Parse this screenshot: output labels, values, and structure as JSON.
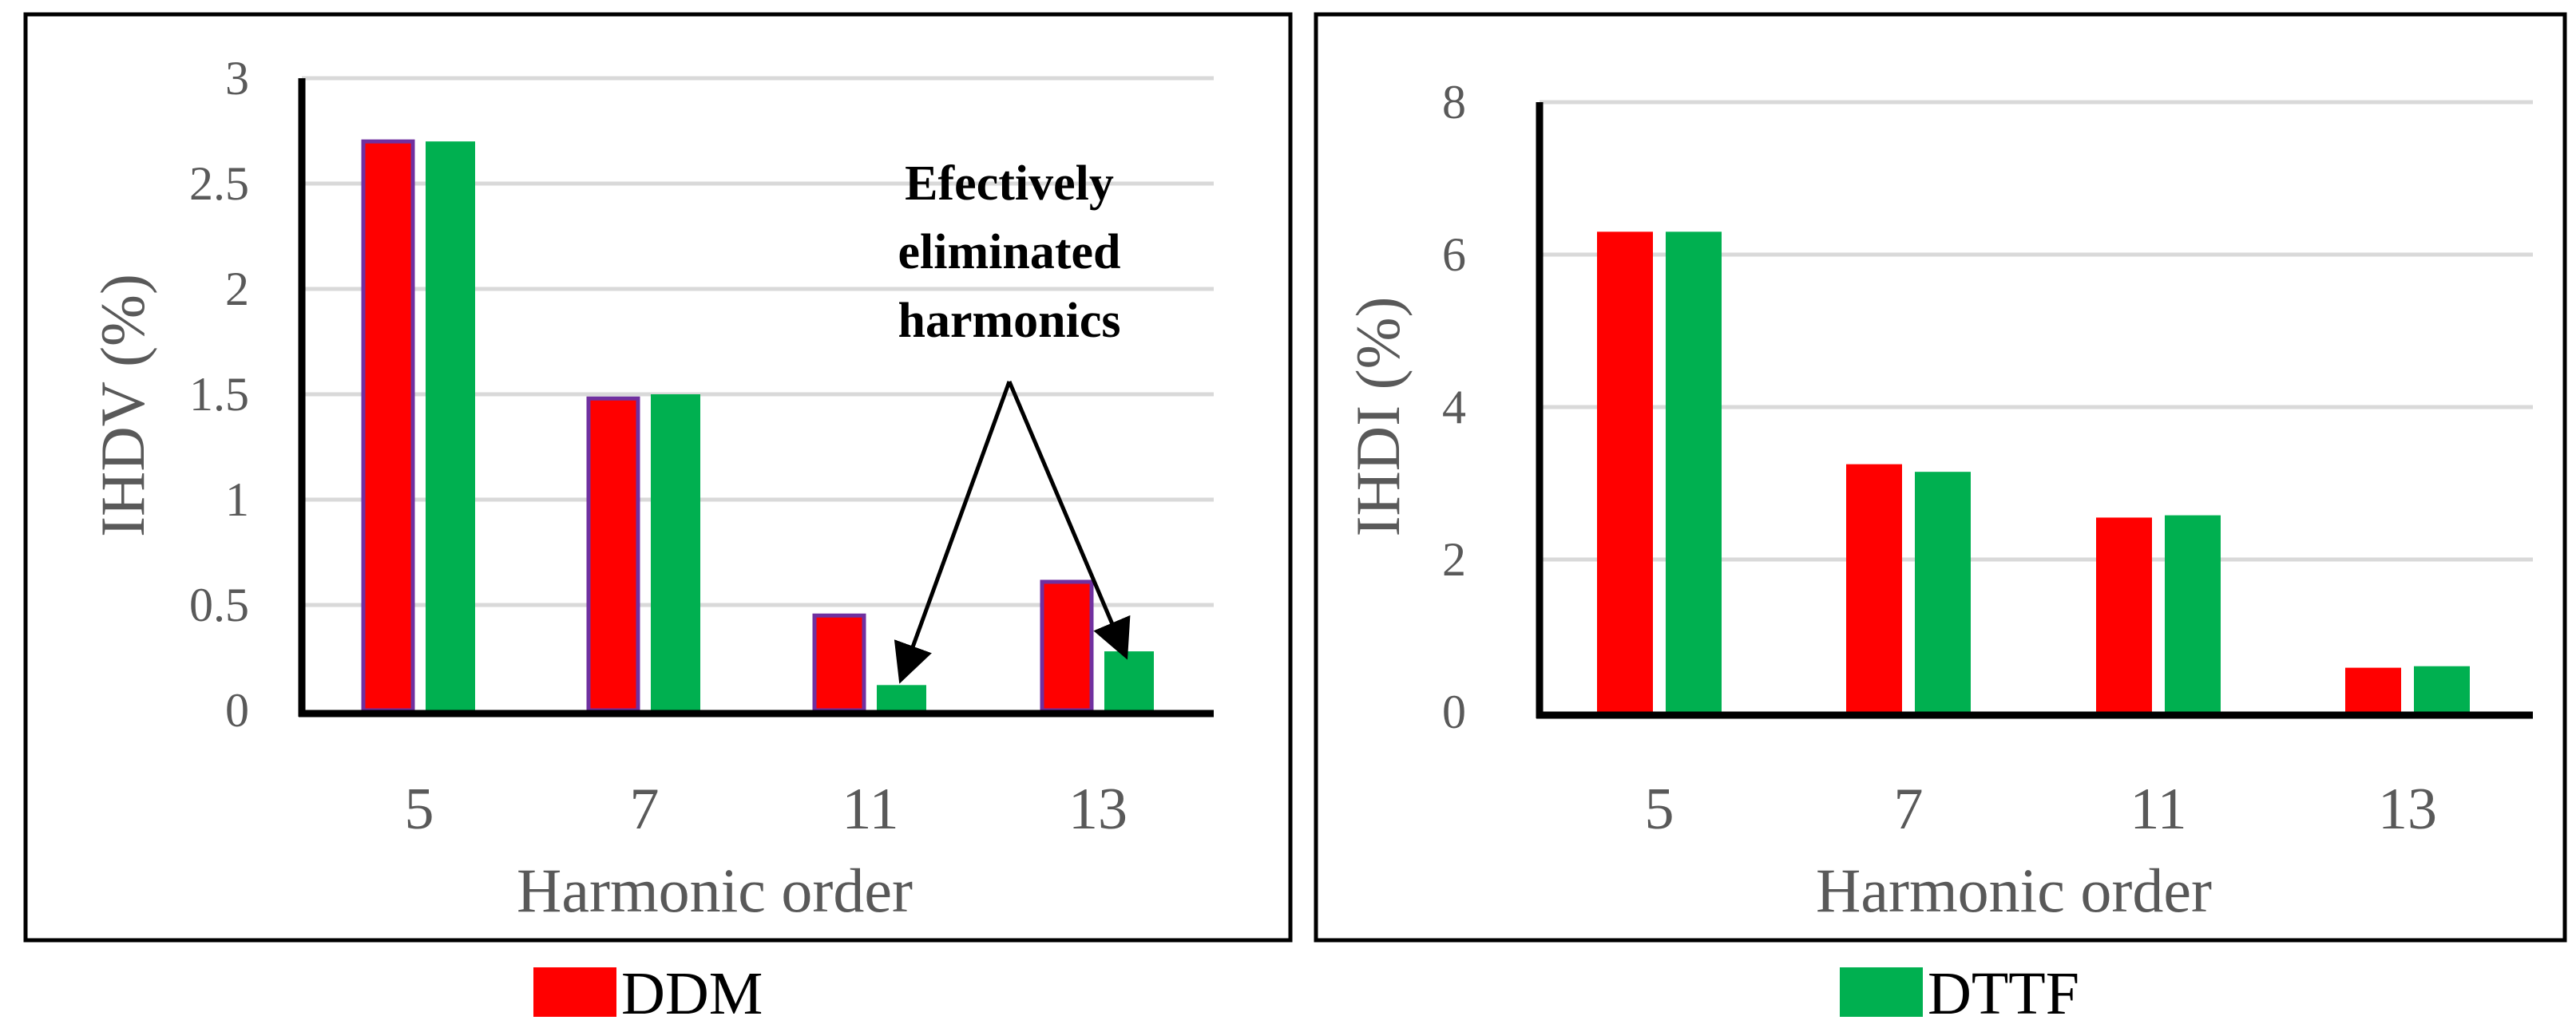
{
  "chart_data": [
    {
      "type": "bar",
      "xlabel": "Harmonic order",
      "ylabel": "IHDV  (%)",
      "categories": [
        "5",
        "7",
        "11",
        "13"
      ],
      "series": [
        {
          "name": "DDM",
          "values": [
            2.7,
            1.48,
            0.45,
            0.61
          ]
        },
        {
          "name": "DTTF",
          "values": [
            2.7,
            1.5,
            0.12,
            0.28
          ]
        }
      ],
      "ylim": [
        0,
        3
      ],
      "yticks": [
        "0",
        "0.5",
        "1",
        "1.5",
        "2",
        "2.5",
        "3"
      ],
      "grid": true,
      "annotation": [
        "Efectively",
        "eliminated",
        "harmonics"
      ]
    },
    {
      "type": "bar",
      "xlabel": "Harmonic order",
      "ylabel": "IHDI   (%)",
      "categories": [
        "5",
        "7",
        "11",
        "13"
      ],
      "series": [
        {
          "name": "DDM",
          "values": [
            6.3,
            3.25,
            2.55,
            0.58
          ]
        },
        {
          "name": "DTTF",
          "values": [
            6.3,
            3.15,
            2.58,
            0.6
          ]
        }
      ],
      "ylim": [
        0,
        8
      ],
      "yticks": [
        "0",
        "2",
        "4",
        "6",
        "8"
      ],
      "grid": true
    }
  ],
  "legend": [
    {
      "label": "DDM",
      "color": "#ff0000"
    },
    {
      "label": "DTTF",
      "color": "#00b050"
    }
  ],
  "colors": {
    "DDM": "#ff0000",
    "DTTF": "#00b050",
    "DDM_outline": "#7030a0",
    "grid": "#d9d9d9"
  }
}
